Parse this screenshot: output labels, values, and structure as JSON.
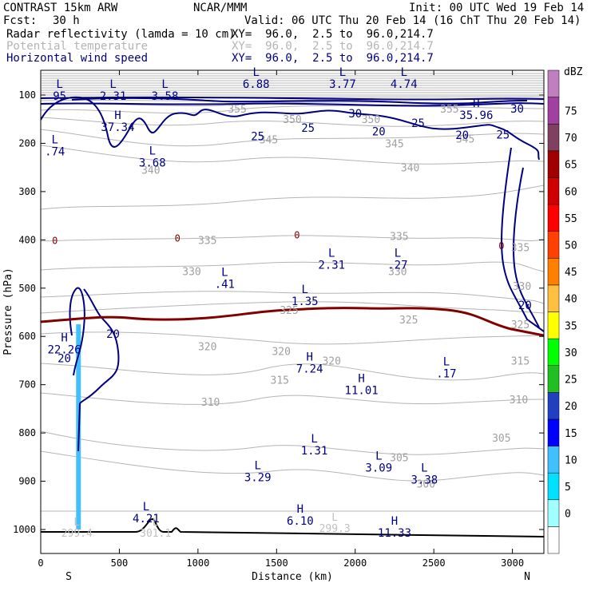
{
  "header": {
    "model": "CONTRAST 15km ARW",
    "org": "NCAR/MMM",
    "init": "Init: 00 UTC Wed 19 Feb 14",
    "fcst_label": "Fcst:",
    "fcst_value": "30 h",
    "valid": "Valid: 06 UTC Thu 20 Feb 14 (16 ChT Thu 20 Feb 14)",
    "fields": [
      {
        "name": "Radar reflectivity (lamda = 10 cm)",
        "xy": "XY=  96.0,  2.5 to  96.0,214.7",
        "color": "#000000"
      },
      {
        "name": "Potential temperature",
        "xy": "XY=  96.0,  2.5 to  96.0,214.7",
        "color": "#b4b4b4"
      },
      {
        "name": "Horizontal wind speed",
        "xy": "XY=  96.0,  2.5 to  96.0,214.7",
        "color": "#000080"
      }
    ]
  },
  "chart_data": {
    "type": "cross-section contour",
    "xlabel": "Distance (km)",
    "ylabel": "Pressure (hPa)",
    "xlim": [
      0,
      3200
    ],
    "ylim": [
      1045,
      50
    ],
    "x_ticks": [
      0,
      500,
      1000,
      1500,
      2000,
      2500,
      3000
    ],
    "x_tick_labels": [
      "0",
      "500",
      "1000",
      "1500",
      "2000",
      "2500",
      "3000"
    ],
    "y_ticks": [
      100,
      200,
      300,
      400,
      500,
      600,
      700,
      800,
      900,
      1000
    ],
    "y_tick_labels": [
      "100",
      "200",
      "300",
      "400",
      "500",
      "600",
      "700",
      "800",
      "900",
      "1000"
    ],
    "x_end_labels": {
      "left": "S",
      "right": "N"
    },
    "colorbar": {
      "unit": "dBZ",
      "levels": [
        0,
        5,
        10,
        15,
        20,
        25,
        30,
        35,
        40,
        45,
        50,
        55,
        60,
        65,
        70,
        75
      ],
      "level_labels": [
        "0",
        "5",
        "10",
        "15",
        "20",
        "25",
        "30",
        "35",
        "40",
        "45",
        "50",
        "55",
        "60",
        "65",
        "70",
        "75"
      ],
      "colors": [
        "#ffffff",
        "#a0ffff",
        "#00e0ff",
        "#40c0ff",
        "#0000ff",
        "#2040c0",
        "#20c020",
        "#00ff00",
        "#ffff00",
        "#ffc040",
        "#ff8000",
        "#ff4000",
        "#ff0000",
        "#d00000",
        "#a00000",
        "#804060",
        "#a040a0",
        "#c080c0"
      ]
    },
    "reflectivity_band": {
      "x_start": 225,
      "x_end": 255,
      "p_top": 575,
      "p_bottom": 1000,
      "dbz": 10
    },
    "theta_labels": [
      {
        "x": 700,
        "p": 255,
        "label": "340"
      },
      {
        "x": 2350,
        "p": 250,
        "label": "340"
      },
      {
        "x": 1450,
        "p": 192,
        "label": "345"
      },
      {
        "x": 2250,
        "p": 200,
        "label": "345"
      },
      {
        "x": 2700,
        "p": 190,
        "label": "345"
      },
      {
        "x": 1600,
        "p": 150,
        "label": "350"
      },
      {
        "x": 2100,
        "p": 150,
        "label": "350"
      },
      {
        "x": 1250,
        "p": 128,
        "label": "355"
      },
      {
        "x": 2600,
        "p": 128,
        "label": "355"
      },
      {
        "x": 1060,
        "p": 400,
        "label": "335"
      },
      {
        "x": 2280,
        "p": 392,
        "label": "335"
      },
      {
        "x": 3050,
        "p": 415,
        "label": "335"
      },
      {
        "x": 960,
        "p": 465,
        "label": "330"
      },
      {
        "x": 2270,
        "p": 465,
        "label": "330"
      },
      {
        "x": 3060,
        "p": 495,
        "label": "330"
      },
      {
        "x": 1580,
        "p": 545,
        "label": "325"
      },
      {
        "x": 2340,
        "p": 565,
        "label": "325"
      },
      {
        "x": 3050,
        "p": 575,
        "label": "325"
      },
      {
        "x": 1060,
        "p": 620,
        "label": "320"
      },
      {
        "x": 1530,
        "p": 630,
        "label": "320"
      },
      {
        "x": 1850,
        "p": 650,
        "label": "320"
      },
      {
        "x": 3050,
        "p": 650,
        "label": "315"
      },
      {
        "x": 1520,
        "p": 690,
        "label": "315"
      },
      {
        "x": 1080,
        "p": 735,
        "label": "310"
      },
      {
        "x": 3040,
        "p": 730,
        "label": "310"
      },
      {
        "x": 2930,
        "p": 810,
        "label": "305"
      },
      {
        "x": 2280,
        "p": 850,
        "label": "305"
      },
      {
        "x": 2450,
        "p": 905,
        "label": "300"
      }
    ],
    "zero_isotherm_label": "0",
    "wind_labels": [
      {
        "x": 2000,
        "p": 138,
        "label": "30"
      },
      {
        "x": 3030,
        "p": 128,
        "label": "30"
      },
      {
        "x": 1700,
        "p": 168,
        "label": "25"
      },
      {
        "x": 2400,
        "p": 158,
        "label": "25"
      },
      {
        "x": 2940,
        "p": 182,
        "label": "25"
      },
      {
        "x": 1380,
        "p": 185,
        "label": "25"
      },
      {
        "x": 2150,
        "p": 175,
        "label": "20"
      },
      {
        "x": 2680,
        "p": 183,
        "label": "20"
      },
      {
        "x": 3080,
        "p": 535,
        "label": "20"
      },
      {
        "x": 460,
        "p": 595,
        "label": "20"
      },
      {
        "x": 150,
        "p": 645,
        "label": "20"
      }
    ],
    "extrema": [
      {
        "x": 120,
        "p": 85,
        "type": "L",
        "value": "95"
      },
      {
        "x": 460,
        "p": 85,
        "type": "L",
        "value": "2.31"
      },
      {
        "x": 790,
        "p": 85,
        "type": "L",
        "value": "3.58"
      },
      {
        "x": 1370,
        "p": 60,
        "type": "L",
        "value": "6.88"
      },
      {
        "x": 1920,
        "p": 60,
        "type": "L",
        "value": "3.77"
      },
      {
        "x": 2310,
        "p": 60,
        "type": "L",
        "value": "4.74"
      },
      {
        "x": 2770,
        "p": 125,
        "type": "H",
        "value": "35.96"
      },
      {
        "x": 490,
        "p": 150,
        "type": "H",
        "value": "37.34"
      },
      {
        "x": 90,
        "p": 200,
        "type": "L",
        "value": ".74"
      },
      {
        "x": 710,
        "p": 223,
        "type": "L",
        "value": "3.68"
      },
      {
        "x": 1170,
        "p": 475,
        "type": "L",
        "value": ".41"
      },
      {
        "x": 1850,
        "p": 435,
        "type": "L",
        "value": "2.31"
      },
      {
        "x": 2270,
        "p": 435,
        "type": "L",
        "value": ".27"
      },
      {
        "x": 1680,
        "p": 510,
        "type": "L",
        "value": "1.35"
      },
      {
        "x": 150,
        "p": 610,
        "type": "H",
        "value": "22.26"
      },
      {
        "x": 1710,
        "p": 650,
        "type": "H",
        "value": "7.24"
      },
      {
        "x": 2040,
        "p": 695,
        "type": "H",
        "value": "11.01"
      },
      {
        "x": 2580,
        "p": 660,
        "type": "L",
        "value": ".17"
      },
      {
        "x": 1740,
        "p": 820,
        "type": "L",
        "value": "1.31"
      },
      {
        "x": 2150,
        "p": 855,
        "type": "L",
        "value": "3.09"
      },
      {
        "x": 1380,
        "p": 875,
        "type": "L",
        "value": "3.29"
      },
      {
        "x": 2440,
        "p": 880,
        "type": "L",
        "value": "3.38"
      },
      {
        "x": 670,
        "p": 960,
        "type": "L",
        "value": "4.21"
      },
      {
        "x": 1650,
        "p": 965,
        "type": "H",
        "value": "6.10"
      },
      {
        "x": 2250,
        "p": 990,
        "type": "H",
        "value": "11.33"
      }
    ],
    "faint_extrema": [
      {
        "x": 230,
        "p": 1005,
        "type": "L",
        "value": "299.4"
      },
      {
        "x": 730,
        "p": 1005,
        "type": "L",
        "value": "301.1"
      },
      {
        "x": 1870,
        "p": 995,
        "type": "L",
        "value": "299.3"
      }
    ]
  }
}
